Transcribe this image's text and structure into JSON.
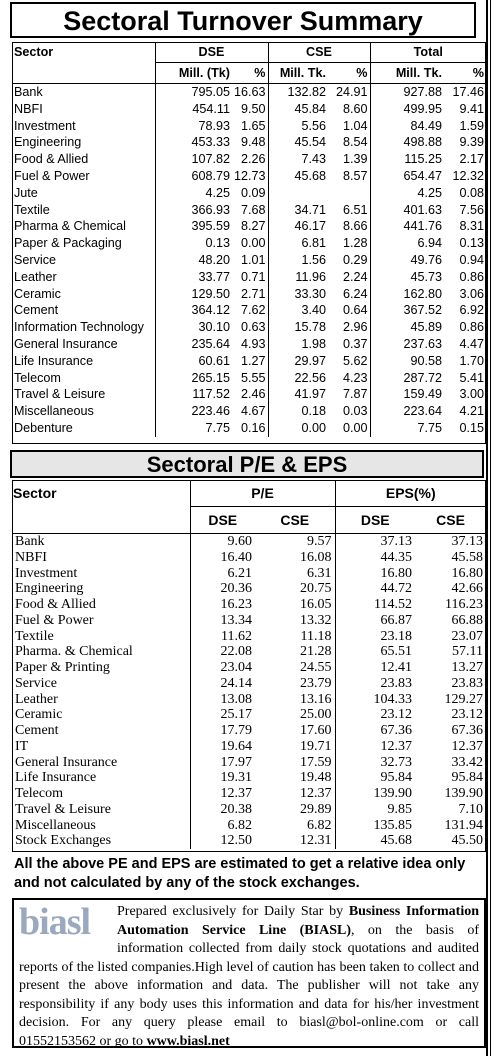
{
  "turnover": {
    "title": "Sectoral Turnover Summary",
    "headers": [
      "Sector",
      "DSE",
      "CSE",
      "Total"
    ],
    "subheaders": [
      "Mill. (Tk)",
      "%",
      "Mill. Tk.",
      "%",
      "Mill. Tk.",
      "%"
    ],
    "rows": [
      [
        "Bank",
        "795.05",
        "16.63",
        "132.82",
        "24.91",
        "927.88",
        "17.46"
      ],
      [
        "NBFI",
        "454.11",
        "9.50",
        "45.84",
        "8.60",
        "499.95",
        "9.41"
      ],
      [
        "Investment",
        "78.93",
        "1.65",
        "5.56",
        "1.04",
        "84.49",
        "1.59"
      ],
      [
        "Engineering",
        "453.33",
        "9.48",
        "45.54",
        "8.54",
        "498.88",
        "9.39"
      ],
      [
        "Food & Allied",
        "107.82",
        "2.26",
        "7.43",
        "1.39",
        "115.25",
        "2.17"
      ],
      [
        "Fuel & Power",
        "608.79",
        "12.73",
        "45.68",
        "8.57",
        "654.47",
        "12.32"
      ],
      [
        "Jute",
        "4.25",
        "0.09",
        null,
        null,
        "4.25",
        "0.08"
      ],
      [
        "Textile",
        "366.93",
        "7.68",
        "34.71",
        "6.51",
        "401.63",
        "7.56"
      ],
      [
        "Pharma & Chemical",
        "395.59",
        "8.27",
        "46.17",
        "8.66",
        "441.76",
        "8.31"
      ],
      [
        "Paper & Packaging",
        "0.13",
        "0.00",
        "6.81",
        "1.28",
        "6.94",
        "0.13"
      ],
      [
        "Service",
        "48.20",
        "1.01",
        "1.56",
        "0.29",
        "49.76",
        "0.94"
      ],
      [
        "Leather",
        "33.77",
        "0.71",
        "11.96",
        "2.24",
        "45.73",
        "0.86"
      ],
      [
        "Ceramic",
        "129.50",
        "2.71",
        "33.30",
        "6.24",
        "162.80",
        "3.06"
      ],
      [
        "Cement",
        "364.12",
        "7.62",
        "3.40",
        "0.64",
        "367.52",
        "6.92"
      ],
      [
        "Information Technology",
        "30.10",
        "0.63",
        "15.78",
        "2.96",
        "45.89",
        "0.86"
      ],
      [
        "General Insurance",
        "235.64",
        "4.93",
        "1.98",
        "0.37",
        "237.63",
        "4.47"
      ],
      [
        "Life Insurance",
        "60.61",
        "1.27",
        "29.97",
        "5.62",
        "90.58",
        "1.70"
      ],
      [
        "Telecom",
        "265.15",
        "5.55",
        "22.56",
        "4.23",
        "287.72",
        "5.41"
      ],
      [
        "Travel & Leisure",
        "117.52",
        "2.46",
        "41.97",
        "7.87",
        "159.49",
        "3.00"
      ],
      [
        "Miscellaneous",
        "223.46",
        "4.67",
        "0.18",
        "0.03",
        "223.64",
        "4.21"
      ],
      [
        "Debenture",
        "7.75",
        "0.16",
        "0.00",
        "0.00",
        "7.75",
        "0.15"
      ]
    ]
  },
  "pe": {
    "title": "Sectoral P/E & EPS",
    "headers": [
      "Sector",
      "P/E",
      "EPS(%)"
    ],
    "subheaders": [
      "DSE",
      "CSE",
      "DSE",
      "CSE"
    ],
    "rows": [
      [
        "Bank",
        "9.60",
        "9.57",
        "37.13",
        "37.13"
      ],
      [
        "NBFI",
        "16.40",
        "16.08",
        "44.35",
        "45.58"
      ],
      [
        "Investment",
        "6.21",
        "6.31",
        "16.80",
        "16.80"
      ],
      [
        "Engineering",
        "20.36",
        "20.75",
        "44.72",
        "42.66"
      ],
      [
        "Food & Allied",
        "16.23",
        "16.05",
        "114.52",
        "116.23"
      ],
      [
        "Fuel & Power",
        "13.34",
        "13.32",
        "66.87",
        "66.88"
      ],
      [
        "Textile",
        "11.62",
        "11.18",
        "23.18",
        "23.07"
      ],
      [
        "Pharma. & Chemical",
        "22.08",
        "21.28",
        "65.51",
        "57.11"
      ],
      [
        "Paper & Printing",
        "23.04",
        "24.55",
        "12.41",
        "13.27"
      ],
      [
        "Service",
        "24.14",
        "23.79",
        "23.83",
        "23.83"
      ],
      [
        "Leather",
        "13.08",
        "13.16",
        "104.33",
        "129.27"
      ],
      [
        "Ceramic",
        "25.17",
        "25.00",
        "23.12",
        "23.12"
      ],
      [
        "Cement",
        "17.79",
        "17.60",
        "67.36",
        "67.36"
      ],
      [
        "IT",
        "19.64",
        "19.71",
        "12.37",
        "12.37"
      ],
      [
        "General Insurance",
        "17.97",
        "17.59",
        "32.73",
        "33.42"
      ],
      [
        "Life Insurance",
        "19.31",
        "19.48",
        "95.84",
        "95.84"
      ],
      [
        "Telecom",
        "12.37",
        "12.37",
        "139.90",
        "139.90"
      ],
      [
        "Travel & Leisure",
        "20.38",
        "29.89",
        "9.85",
        "7.10"
      ],
      [
        "Miscellaneous",
        "6.82",
        "6.82",
        "135.85",
        "131.94"
      ],
      [
        "Stock Exchanges",
        "12.50",
        "12.31",
        "45.68",
        "45.50"
      ]
    ]
  },
  "note": "All the above PE and EPS are estimated to get a relative idea only and not calculated by any of the stock exchanges.",
  "footer": {
    "logo": "biasl",
    "parts": [
      "Prepared exclusively for Daily Star by ",
      "Business Information Automation Service Line (BIASL)",
      ", on the basis of information collected from daily stock quotations and audited reports of the listed companies.High level of caution has been taken to collect and present the above information and data. The publisher will not take any responsibility if any body uses this information and data for his/her investment decision. For any query please email to biasl@bol-online.com or call 01552153562 or go to ",
      "www.biasl.net"
    ]
  }
}
